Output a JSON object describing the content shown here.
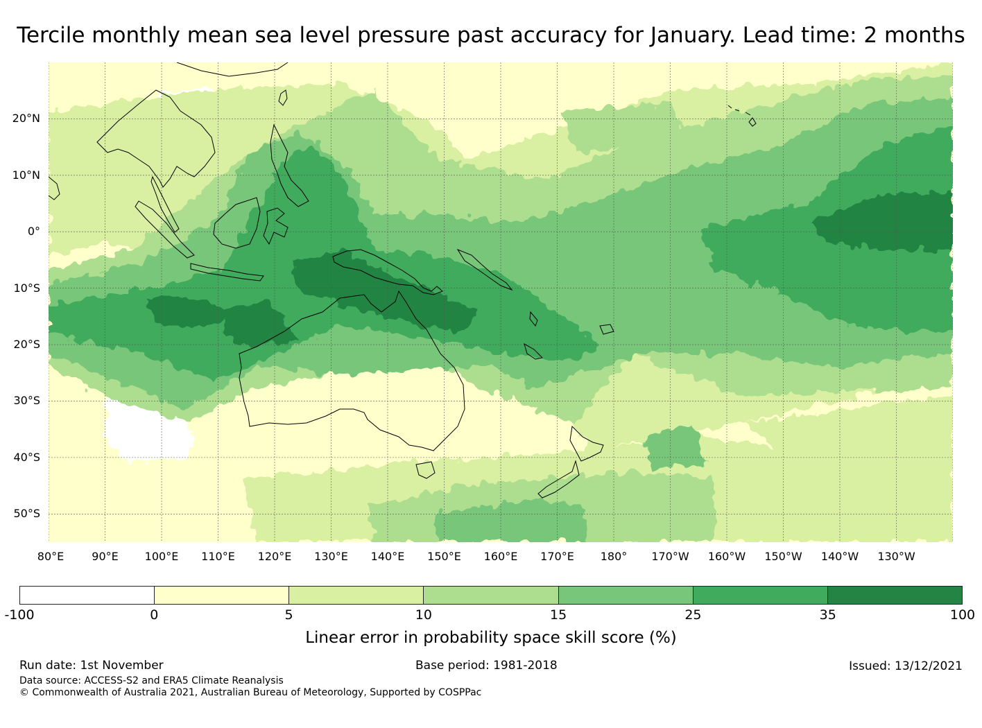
{
  "title": "Tercile monthly mean sea level pressure past accuracy for January. Lead time: 2 months",
  "map": {
    "lon_range": [
      80,
      240
    ],
    "lat_range": [
      -55,
      30
    ],
    "lat_labels": [
      "20°N",
      "10°N",
      "0°",
      "10°S",
      "20°S",
      "30°S",
      "40°S",
      "50°S"
    ],
    "lon_labels": [
      "80°E",
      "90°E",
      "100°E",
      "110°E",
      "120°E",
      "130°E",
      "140°E",
      "150°E",
      "160°E",
      "170°E",
      "180°",
      "170°W",
      "160°W",
      "150°W",
      "140°W",
      "130°W"
    ]
  },
  "colorbar": {
    "title": "Linear error in probability space skill score (%)",
    "ticks": [
      "-100",
      "0",
      "5",
      "10",
      "15",
      "25",
      "35",
      "100"
    ],
    "colors": [
      "#ffffff",
      "#ffffcc",
      "#d9f0a3",
      "#addd8e",
      "#78c679",
      "#41ab5d",
      "#238443"
    ]
  },
  "footer": {
    "run_date": "Run date: 1st November",
    "base_period": "Base period: 1981-2018",
    "issued": "Issued: 13/12/2021",
    "data_source": "Data source: ACCESS-S2 and ERA5 Climate Reanalysis",
    "copyright": "© Commonwealth of Australia 2021, Australian Bureau of Meteorology, Supported by COSPPac"
  }
}
